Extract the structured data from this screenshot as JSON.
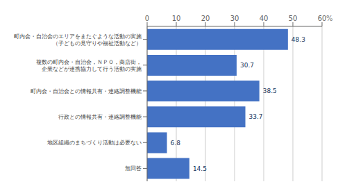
{
  "chart_data": {
    "type": "bar",
    "orientation": "horizontal",
    "categories": [
      "無回答",
      "地区組織のまちづくり活動は必要ない",
      "行政との情報共有・連絡調整機能",
      "町内会・自治会との情報共有・連絡調整機能",
      "複数の町内会・自治会，ＮＰＯ，商店街，\n企業などが連携協力して行う活動の実施",
      "町内会・自治会のエリアをまたぐような活動の実施\n（子どもの見守りや福祉活動など）"
    ],
    "values": [
      14.5,
      6.8,
      33.7,
      38.5,
      30.7,
      48.3
    ],
    "color": "#4472C4",
    "xlim": [
      0,
      60
    ],
    "xticks": [
      0,
      10,
      20,
      30,
      40,
      50,
      60
    ],
    "annotations": [
      "%"
    ],
    "grid": true,
    "data_labels": true
  }
}
